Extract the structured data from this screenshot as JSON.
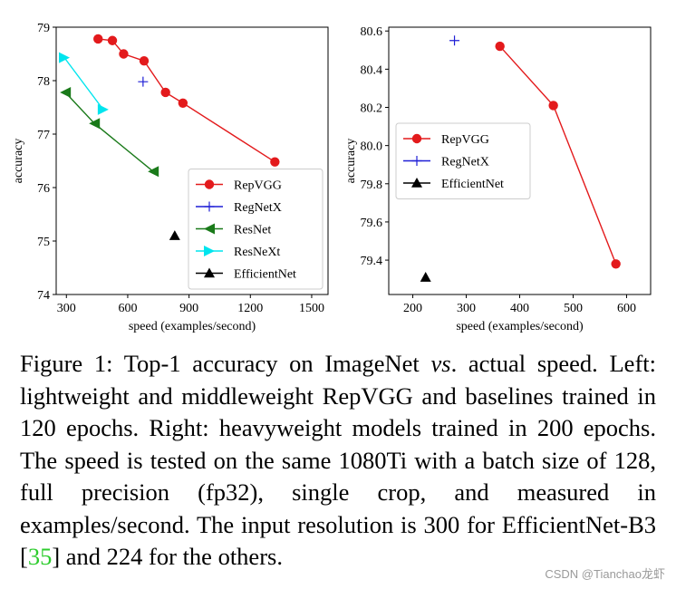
{
  "chart_data": [
    {
      "type": "line",
      "panel": "left",
      "xlabel": "speed (examples/second)",
      "ylabel": "accuracy",
      "xlim": [
        250,
        1580
      ],
      "ylim": [
        74,
        79
      ],
      "xticks": [
        300,
        600,
        900,
        1200,
        1500
      ],
      "yticks": [
        74,
        75,
        76,
        77,
        78,
        79
      ],
      "legend_position": "lower-right",
      "series": [
        {
          "name": "RepVGG",
          "color": "#e31a1c",
          "marker": "circle",
          "line": true,
          "x": [
            455,
            525,
            580,
            680,
            785,
            870,
            1320
          ],
          "y": [
            78.78,
            78.75,
            78.5,
            78.37,
            77.78,
            77.58,
            76.48
          ]
        },
        {
          "name": "RegNetX",
          "color": "#1f1fd6",
          "marker": "plus",
          "line": false,
          "x": [
            675
          ],
          "y": [
            77.98
          ]
        },
        {
          "name": "ResNet",
          "color": "#1a7a1a",
          "marker": "triangle-left",
          "line": true,
          "x": [
            295,
            437,
            725
          ],
          "y": [
            77.78,
            77.2,
            76.3
          ]
        },
        {
          "name": "ResNeXt",
          "color": "#00e5ee",
          "marker": "triangle-right",
          "line": true,
          "x": [
            290,
            480
          ],
          "y": [
            78.43,
            77.46
          ]
        },
        {
          "name": "EfficientNet",
          "color": "#000000",
          "marker": "triangle-up",
          "line": false,
          "x": [
            830
          ],
          "y": [
            75.1
          ]
        }
      ]
    },
    {
      "type": "line",
      "panel": "right",
      "xlabel": "speed (examples/second)",
      "ylabel": "accuracy",
      "xlim": [
        155,
        645
      ],
      "ylim": [
        79.22,
        80.62
      ],
      "xticks": [
        200,
        300,
        400,
        500,
        600
      ],
      "yticks": [
        79.4,
        79.6,
        79.8,
        80.0,
        80.2,
        80.4,
        80.6
      ],
      "ytick_labels": [
        "79.4",
        "79.6",
        "79.8",
        "80.0",
        "80.2",
        "80.4",
        "80.6"
      ],
      "legend_position": "upper-left",
      "series": [
        {
          "name": "RepVGG",
          "color": "#e31a1c",
          "marker": "circle",
          "line": true,
          "x": [
            363,
            463,
            580
          ],
          "y": [
            80.52,
            80.21,
            79.38
          ]
        },
        {
          "name": "RegNetX",
          "color": "#1f1fd6",
          "marker": "plus",
          "line": false,
          "x": [
            278
          ],
          "y": [
            80.55
          ]
        },
        {
          "name": "EfficientNet",
          "color": "#000000",
          "marker": "triangle-up",
          "line": false,
          "x": [
            224
          ],
          "y": [
            79.31
          ]
        }
      ]
    }
  ],
  "caption": {
    "part1": "Figure 1: Top-1 accuracy on ImageNet ",
    "vs": "vs",
    "part2": ". actual speed. Left: lightweight and middleweight RepVGG and baselines trained in 120 epochs. Right: heavyweight models trained in 200 epochs. The speed is tested on the same 1080Ti with a batch size of 128, full precision (fp32), single crop, and measured in examples/second. The input resolution is 300 for EfficientNet-B3 [",
    "cite": "35",
    "part3": "] and 224 for the others."
  },
  "watermark": "CSDN @Tianchao龙虾"
}
